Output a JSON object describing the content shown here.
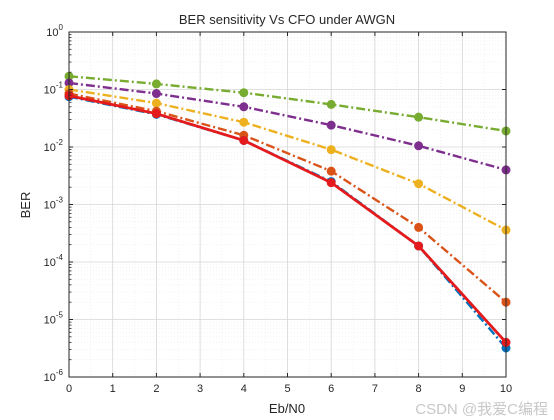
{
  "chart_data": {
    "type": "line",
    "title": "BER sensitivity Vs CFO under AWGN",
    "xlabel": "Eb/N0",
    "ylabel": "BER",
    "xlim": [
      0,
      10
    ],
    "ylim": [
      1e-06,
      1
    ],
    "yscale": "log",
    "grid": true,
    "minor_grid": true,
    "x": [
      0,
      2,
      4,
      6,
      8,
      10
    ],
    "xticks": [
      "0",
      "1",
      "2",
      "3",
      "4",
      "5",
      "6",
      "7",
      "8",
      "9",
      "10"
    ],
    "yticks": [
      {
        "base": "10",
        "exp": "0"
      },
      {
        "base": "10",
        "exp": "-1"
      },
      {
        "base": "10",
        "exp": "-2"
      },
      {
        "base": "10",
        "exp": "-3"
      },
      {
        "base": "10",
        "exp": "-4"
      },
      {
        "base": "10",
        "exp": "-5"
      },
      {
        "base": "10",
        "exp": "-6"
      }
    ],
    "series": [
      {
        "color": "#77ac30",
        "dash": "dashdot",
        "values": [
          0.17,
          0.125,
          0.088,
          0.055,
          0.033,
          0.019
        ]
      },
      {
        "color": "#7e2f8e",
        "dash": "dashdot",
        "values": [
          0.13,
          0.085,
          0.05,
          0.024,
          0.0105,
          0.004
        ]
      },
      {
        "color": "#edb120",
        "dash": "dashdot",
        "values": [
          0.1,
          0.058,
          0.027,
          0.009,
          0.0023,
          0.00036
        ]
      },
      {
        "color": "#d95319",
        "dash": "dashdot",
        "values": [
          0.085,
          0.042,
          0.016,
          0.0038,
          0.0004,
          2e-05
        ]
      },
      {
        "color": "#0072bd",
        "dash": "dashdot",
        "values": [
          0.075,
          0.037,
          0.013,
          0.0025,
          0.00019,
          3.2e-06
        ]
      },
      {
        "color": "#e41a1c",
        "dash": "solid",
        "values": [
          0.078,
          0.038,
          0.013,
          0.0024,
          0.00019,
          4e-06
        ]
      }
    ]
  },
  "watermark": "CSDN @我爱C编程"
}
